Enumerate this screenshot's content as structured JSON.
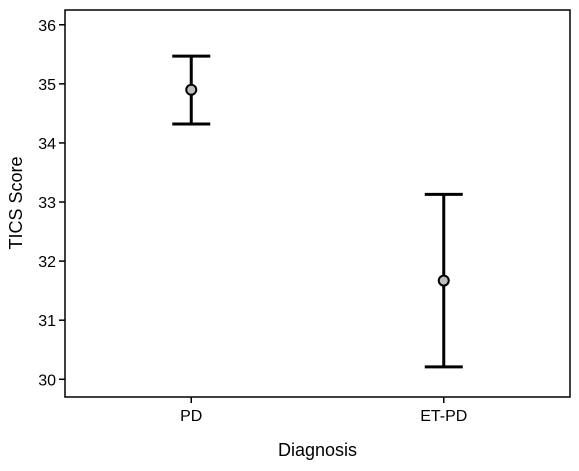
{
  "chart_data": {
    "type": "scatter",
    "title": "",
    "xlabel": "Diagnosis",
    "ylabel": "TICS Score",
    "categories": [
      "PD",
      "ET-PD"
    ],
    "ylim": [
      29.7,
      36.25
    ],
    "yticks": [
      "30",
      "31",
      "32",
      "33",
      "34",
      "35",
      "36"
    ],
    "series": [
      {
        "means": [
          34.9,
          31.67
        ],
        "lower": [
          34.32,
          30.21
        ],
        "upper": [
          35.47,
          33.13
        ]
      }
    ],
    "grid": false,
    "legend": "none",
    "colors": {
      "axis": "#000000",
      "marker_fill": "#bdbdbd",
      "error_bar": "#000000",
      "background": "#ffffff"
    }
  }
}
